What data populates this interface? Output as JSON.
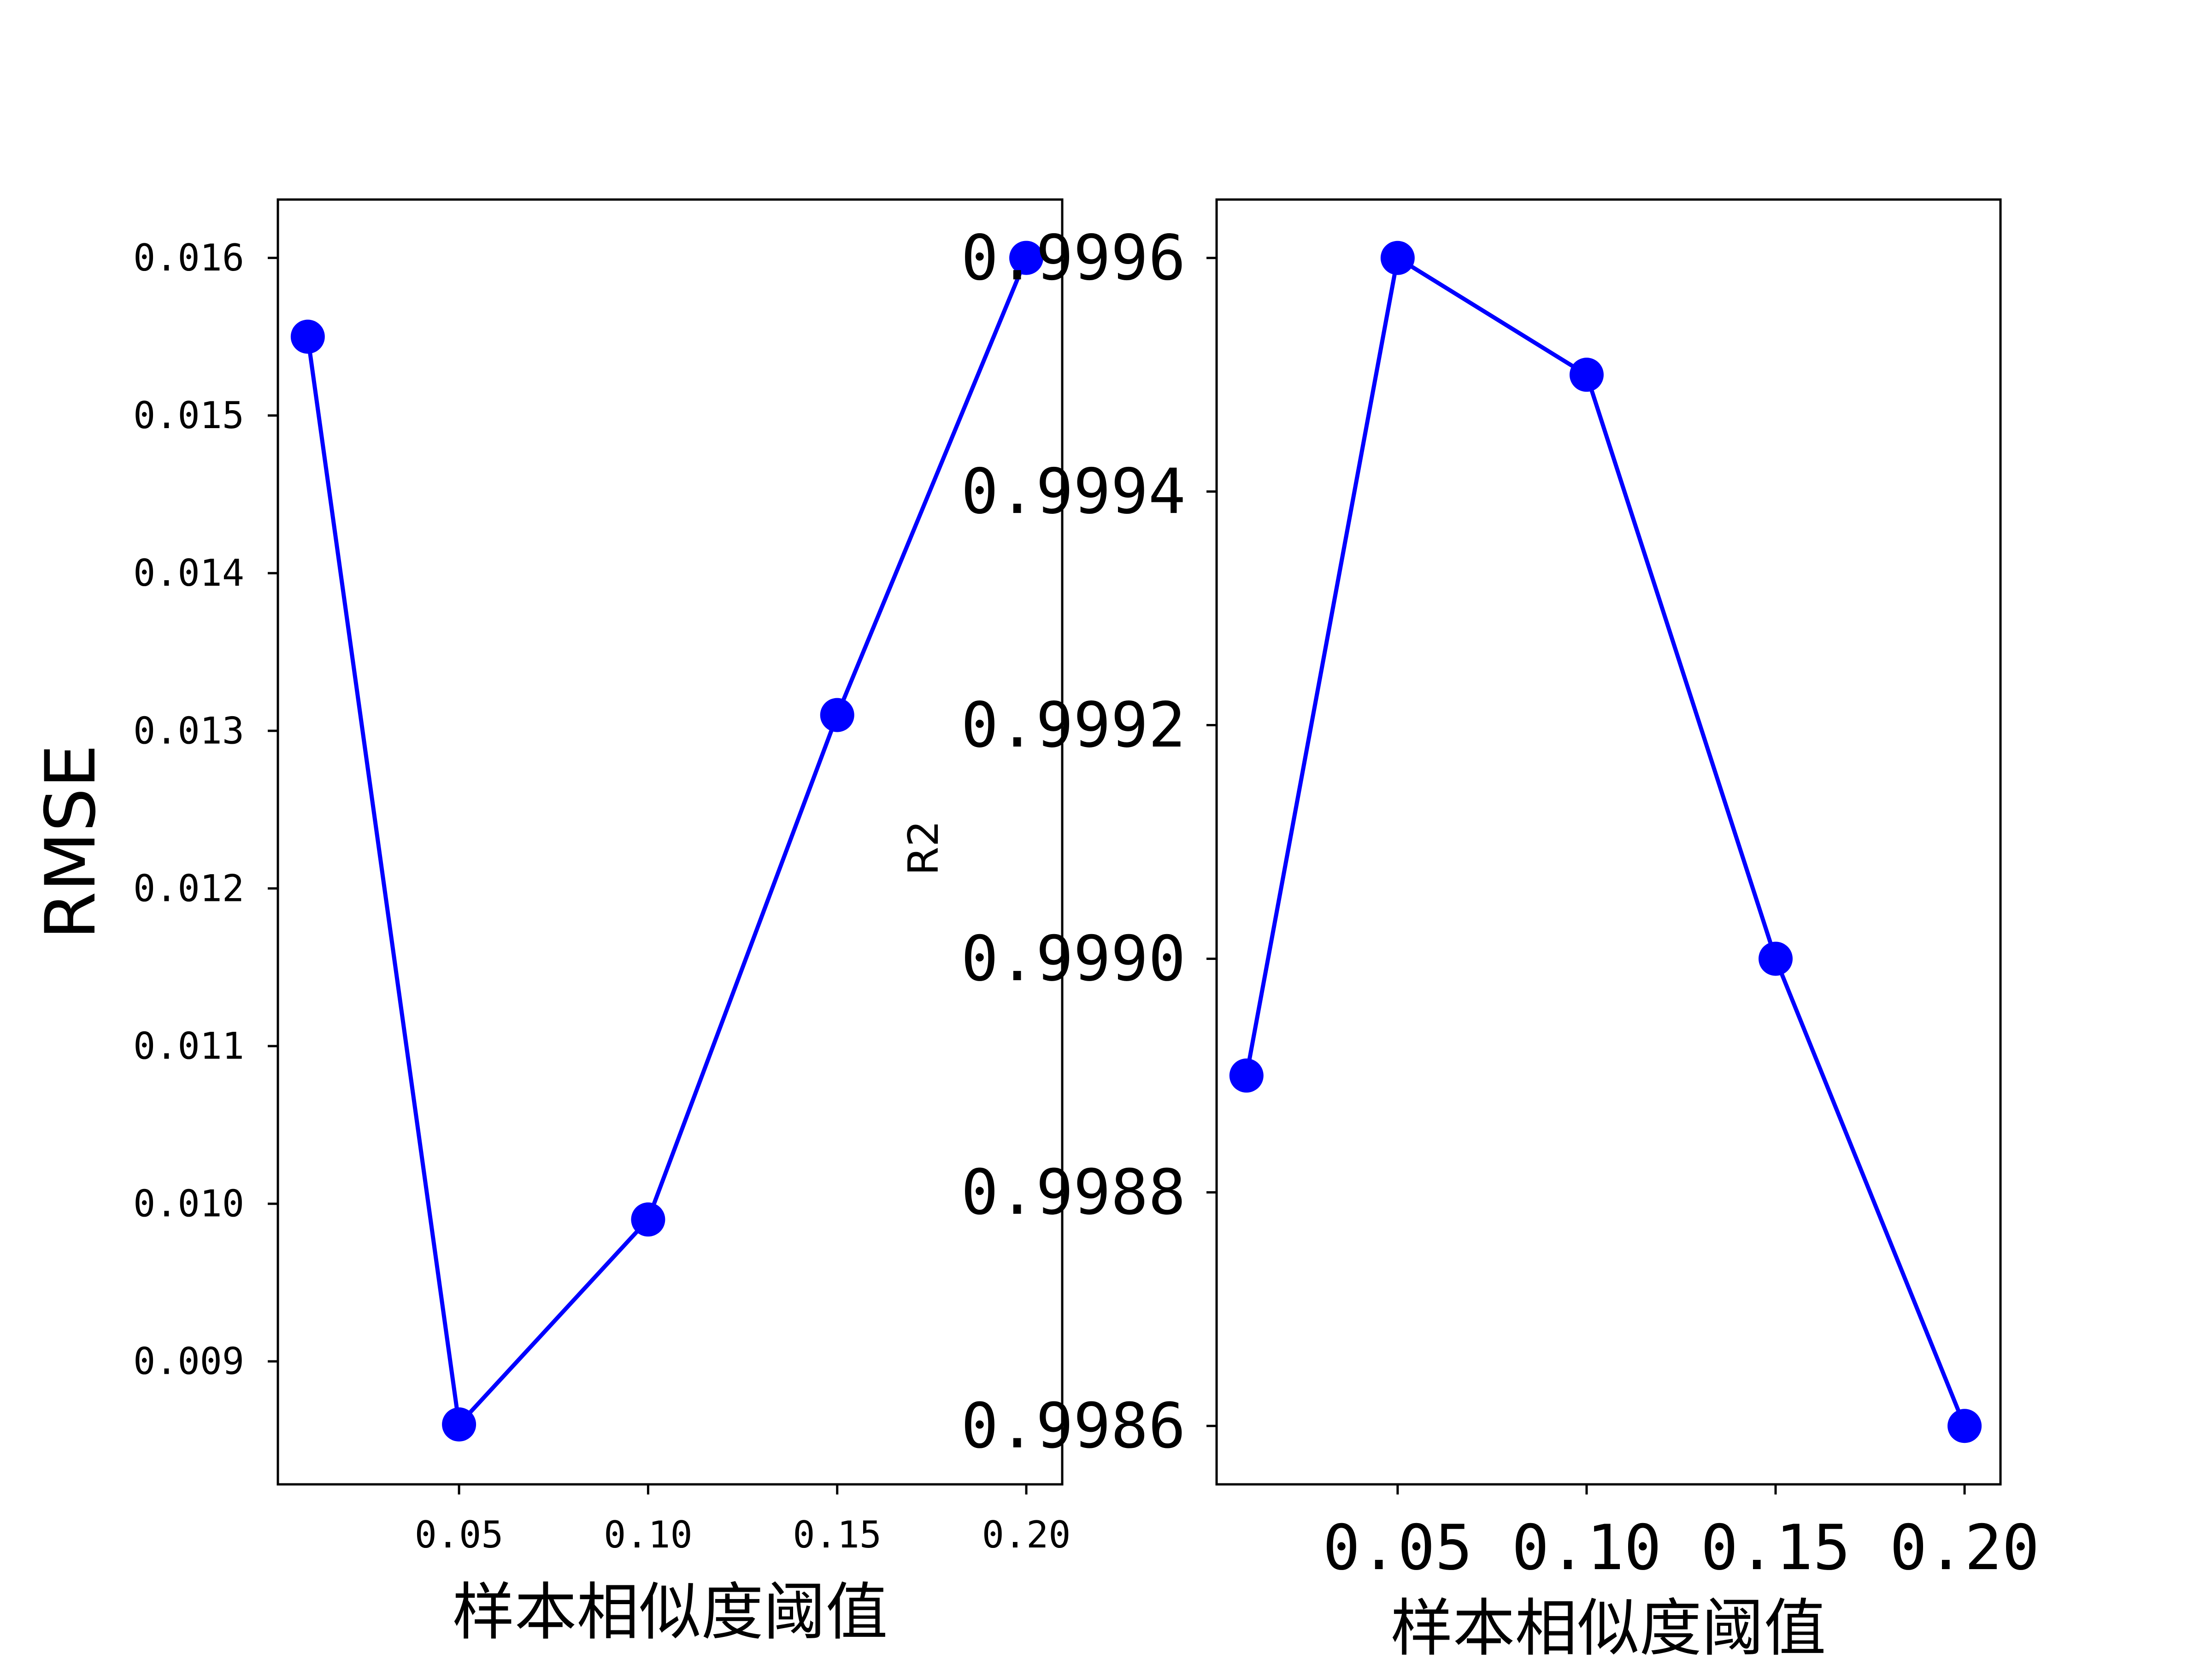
{
  "chart_data": [
    {
      "type": "line",
      "xlabel": "样本相似度阈值",
      "ylabel": "RMSE",
      "x": [
        0.01,
        0.05,
        0.1,
        0.15,
        0.2
      ],
      "x_ticks": [
        0.05,
        0.1,
        0.15,
        0.2
      ],
      "x_tick_labels": [
        "0.05",
        "0.10",
        "0.15",
        "0.20"
      ],
      "xlim": [
        0.0021,
        0.2095
      ],
      "y_ticks": [
        0.009,
        0.01,
        0.011,
        0.012,
        0.013,
        0.014,
        0.015,
        0.016
      ],
      "y_tick_labels": [
        "0.009",
        "0.010",
        "0.011",
        "0.012",
        "0.013",
        "0.014",
        "0.015",
        "0.016"
      ],
      "ylim": [
        0.00822,
        0.01637
      ],
      "series": [
        {
          "values": [
            0.0155,
            0.0086,
            0.0099,
            0.0131,
            0.016
          ],
          "color": "#0000ff",
          "marker": "circle"
        }
      ],
      "grid": false,
      "legend": "none"
    },
    {
      "type": "line",
      "xlabel": "样本相似度阈值",
      "ylabel": "R2",
      "x": [
        0.01,
        0.05,
        0.1,
        0.15,
        0.2
      ],
      "x_ticks": [
        0.05,
        0.1,
        0.15,
        0.2
      ],
      "x_tick_labels": [
        "0.05",
        "0.10",
        "0.15",
        "0.20"
      ],
      "xlim": [
        0.0021,
        0.2095
      ],
      "y_ticks": [
        0.9986,
        0.9988,
        0.999,
        0.9992,
        0.9994,
        0.9996
      ],
      "y_tick_labels": [
        "0.9986",
        "0.9988",
        "0.9990",
        "0.9992",
        "0.9994",
        "0.9996"
      ],
      "ylim": [
        0.99855,
        0.99965
      ],
      "series": [
        {
          "values": [
            0.9989,
            0.9996,
            0.9995,
            0.999,
            0.9986
          ],
          "color": "#0000ff",
          "marker": "circle"
        }
      ],
      "grid": false,
      "legend": "none"
    }
  ]
}
